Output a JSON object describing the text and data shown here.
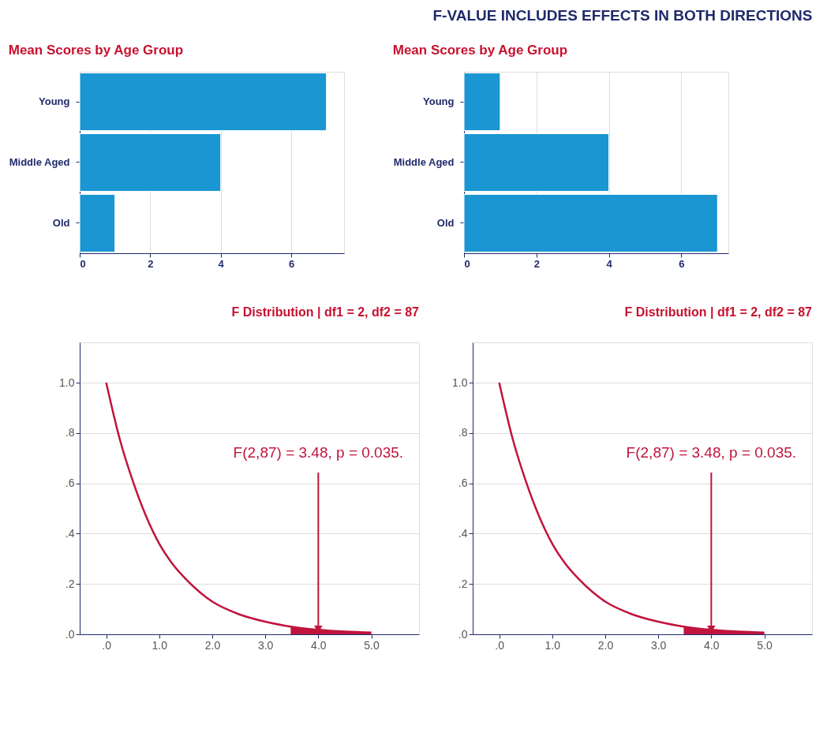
{
  "chart_data": [
    {
      "type": "other",
      "title": "F-VALUE INCLUDES EFFECTS IN BOTH DIRECTIONS"
    },
    {
      "type": "bar",
      "orientation": "horizontal",
      "title": "Mean Scores by Age Group",
      "categories": [
        "Young",
        "Middle Aged",
        "Old"
      ],
      "values": [
        7,
        4,
        1
      ],
      "color": "#1a96d2",
      "xlim": [
        0,
        7.5
      ],
      "xticks": [
        0,
        2,
        4,
        6
      ],
      "grid": "x"
    },
    {
      "type": "bar",
      "orientation": "horizontal",
      "title": "Mean Scores by Age Group",
      "categories": [
        "Young",
        "Middle Aged",
        "Old"
      ],
      "values": [
        1,
        4,
        7
      ],
      "color": "#1a96d2",
      "xlim": [
        0,
        7.3
      ],
      "xticks": [
        0,
        2,
        4,
        6
      ],
      "grid": "x"
    },
    {
      "type": "line",
      "title": "F Distribution | df1 = 2, df2 = 87",
      "xlim": [
        -0.5,
        5.9
      ],
      "ylim": [
        0,
        1.16
      ],
      "xticks": [
        {
          "value": 0,
          "label": ".0"
        },
        {
          "value": 1,
          "label": "1.0"
        },
        {
          "value": 2,
          "label": "2.0"
        },
        {
          "value": 3,
          "label": "3.0"
        },
        {
          "value": 4,
          "label": "4.0"
        },
        {
          "value": 5,
          "label": "5.0"
        }
      ],
      "yticks": [
        {
          "value": 0,
          "label": ".0"
        },
        {
          "value": 0.2,
          "label": ".2"
        },
        {
          "value": 0.4,
          "label": ".4"
        },
        {
          "value": 0.6,
          "label": ".6"
        },
        {
          "value": 0.8,
          "label": ".8"
        },
        {
          "value": 1,
          "label": "1.0"
        }
      ],
      "grid": "y",
      "series": [
        {
          "type": "line",
          "color": "#c0143c",
          "x": [
            0,
            0.25,
            0.5,
            0.75,
            1,
            1.25,
            1.5,
            1.75,
            2,
            2.5,
            3,
            3.5,
            4,
            4.5,
            5
          ],
          "values": [
            1,
            0.78,
            0.61,
            0.47,
            0.36,
            0.28,
            0.22,
            0.17,
            0.13,
            0.08,
            0.05,
            0.03,
            0.018,
            0.011,
            0.007
          ]
        },
        {
          "type": "area",
          "color": "#c0143c",
          "x": [
            3.48,
            4,
            4.5,
            5
          ],
          "values": [
            0.03,
            0.018,
            0.011,
            0.007
          ]
        }
      ],
      "annotations": [
        {
          "text": "F(2,87) = 3.48, p = 0.035.",
          "x": 4,
          "y": 0.02
        }
      ]
    },
    {
      "type": "line",
      "title": "F Distribution | df1 = 2, df2 = 87",
      "xlim": [
        -0.5,
        5.9
      ],
      "ylim": [
        0,
        1.16
      ],
      "xticks": [
        {
          "value": 0,
          "label": ".0"
        },
        {
          "value": 1,
          "label": "1.0"
        },
        {
          "value": 2,
          "label": "2.0"
        },
        {
          "value": 3,
          "label": "3.0"
        },
        {
          "value": 4,
          "label": "4.0"
        },
        {
          "value": 5,
          "label": "5.0"
        }
      ],
      "yticks": [
        {
          "value": 0,
          "label": ".0"
        },
        {
          "value": 0.2,
          "label": ".2"
        },
        {
          "value": 0.4,
          "label": ".4"
        },
        {
          "value": 0.6,
          "label": ".6"
        },
        {
          "value": 0.8,
          "label": ".8"
        },
        {
          "value": 1,
          "label": "1.0"
        }
      ],
      "grid": "y",
      "series": [
        {
          "type": "line",
          "color": "#c0143c",
          "x": [
            0,
            0.25,
            0.5,
            0.75,
            1,
            1.25,
            1.5,
            1.75,
            2,
            2.5,
            3,
            3.5,
            4,
            4.5,
            5
          ],
          "values": [
            1,
            0.78,
            0.61,
            0.47,
            0.36,
            0.28,
            0.22,
            0.17,
            0.13,
            0.08,
            0.05,
            0.03,
            0.018,
            0.011,
            0.007
          ]
        },
        {
          "type": "area",
          "color": "#c0143c",
          "x": [
            3.48,
            4,
            4.5,
            5
          ],
          "values": [
            0.03,
            0.018,
            0.011,
            0.007
          ]
        }
      ],
      "annotations": [
        {
          "text": "F(2,87) = 3.48, p = 0.035.",
          "x": 4,
          "y": 0.02
        }
      ]
    }
  ]
}
